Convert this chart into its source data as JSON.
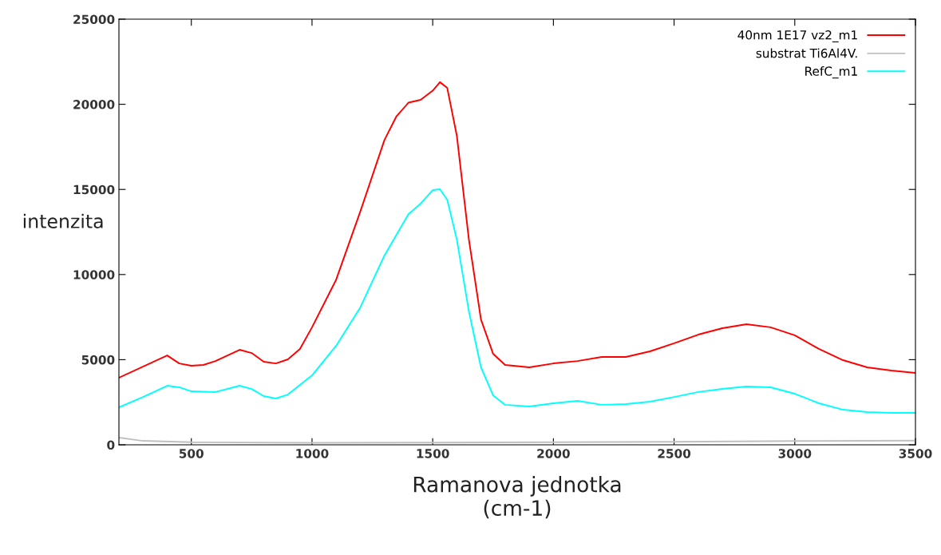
{
  "chart_data": {
    "type": "line",
    "xlabel": "Ramanova jednotka\n(cm-1)",
    "ylabel": "intenzita",
    "xlim": [
      200,
      3500
    ],
    "xticks": [
      500,
      1000,
      1500,
      2000,
      2500,
      3000,
      3500
    ],
    "ylim": [
      0,
      25000
    ],
    "yticks": [
      0,
      5000,
      10000,
      15000,
      20000,
      25000
    ],
    "grid": false,
    "legend": "top right",
    "line_style": "solid",
    "marker": "none",
    "series": [
      {
        "name": "40nm 1E17 vz2_m1",
        "color": "#ff0000",
        "x": [
          200,
          400,
          450,
          500,
          550,
          600,
          700,
          750,
          800,
          850,
          900,
          950,
          1000,
          1100,
          1200,
          1300,
          1350,
          1400,
          1450,
          1500,
          1530,
          1560,
          1600,
          1650,
          1700,
          1750,
          1800,
          1900,
          2000,
          2100,
          2200,
          2300,
          2400,
          2500,
          2600,
          2700,
          2800,
          2900,
          3000,
          3100,
          3200,
          3300,
          3400,
          3500
        ],
        "values": [
          3940,
          5250,
          4780,
          4640,
          4690,
          4920,
          5580,
          5390,
          4880,
          4780,
          5020,
          5630,
          6900,
          9700,
          13700,
          17900,
          19300,
          20100,
          20260,
          20800,
          21300,
          20970,
          18150,
          12050,
          7360,
          5350,
          4690,
          4550,
          4780,
          4920,
          5160,
          5160,
          5490,
          5960,
          6470,
          6850,
          7080,
          6900,
          6430,
          5630,
          4970,
          4550,
          4360,
          4220
        ]
      },
      {
        "name": "substrat Ti6Al4V.",
        "color": "#c0c0c0",
        "x": [
          200,
          300,
          500,
          1000,
          1500,
          2000,
          2500,
          3000,
          3500
        ],
        "values": [
          420,
          230,
          150,
          120,
          130,
          150,
          180,
          220,
          250
        ]
      },
      {
        "name": "RefC_m1",
        "color": "#00ffff",
        "x": [
          200,
          300,
          400,
          450,
          500,
          600,
          700,
          750,
          800,
          850,
          900,
          1000,
          1100,
          1200,
          1300,
          1400,
          1450,
          1500,
          1530,
          1560,
          1600,
          1650,
          1700,
          1750,
          1800,
          1900,
          2000,
          2100,
          2200,
          2300,
          2400,
          2500,
          2600,
          2700,
          2800,
          2900,
          3000,
          3100,
          3200,
          3300,
          3400,
          3500
        ],
        "values": [
          2200,
          2810,
          3470,
          3380,
          3140,
          3100,
          3470,
          3280,
          2860,
          2720,
          2950,
          4080,
          5820,
          8070,
          11120,
          13560,
          14170,
          14960,
          15010,
          14400,
          12050,
          7830,
          4550,
          2910,
          2350,
          2250,
          2440,
          2580,
          2350,
          2390,
          2530,
          2810,
          3100,
          3280,
          3420,
          3380,
          3000,
          2440,
          2060,
          1920,
          1880,
          1880
        ]
      }
    ]
  }
}
